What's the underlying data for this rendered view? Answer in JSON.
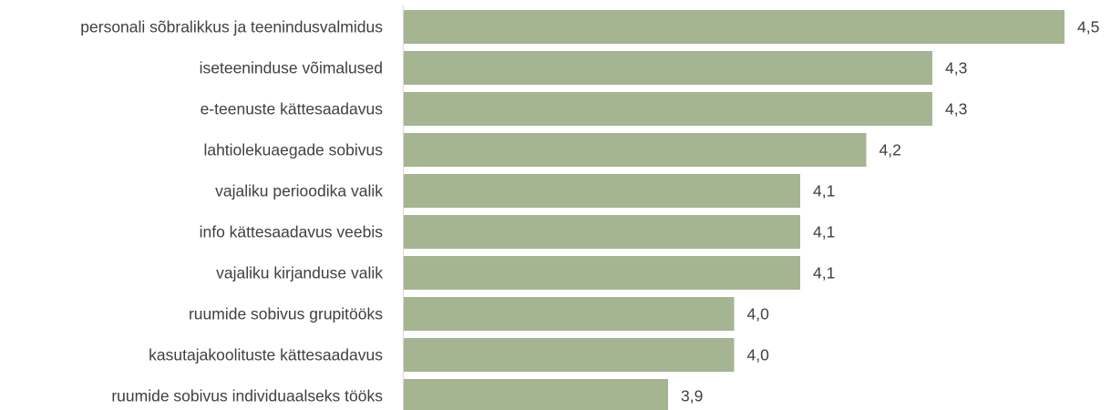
{
  "chart_data": {
    "type": "bar",
    "orientation": "horizontal",
    "categories": [
      "personali sõbralikkus ja teenindusvalmidus",
      "iseteeninduse võimalused",
      "e-teenuste kättesaadavus",
      "lahtiolekuaegade sobivus",
      "vajaliku perioodika valik",
      "info kättesaadavus veebis",
      "vajaliku kirjanduse valik",
      "ruumide sobivus grupitööks",
      "kasutajakoolituste kättesaadavus",
      "ruumide sobivus individuaalseks tööks"
    ],
    "values": [
      4.5,
      4.3,
      4.3,
      4.2,
      4.1,
      4.1,
      4.1,
      4.0,
      4.0,
      3.9
    ],
    "value_labels": [
      "4,5",
      "4,3",
      "4,3",
      "4,2",
      "4,1",
      "4,1",
      "4,1",
      "4,0",
      "4,0",
      "3,9"
    ],
    "title": "",
    "xlabel": "",
    "ylabel": "",
    "xlim": [
      3.5,
      4.5
    ],
    "grid": false,
    "legend": "none",
    "colors": {
      "bar": "#a5b592",
      "axis": "#d9d9d9",
      "text": "#404040"
    }
  }
}
